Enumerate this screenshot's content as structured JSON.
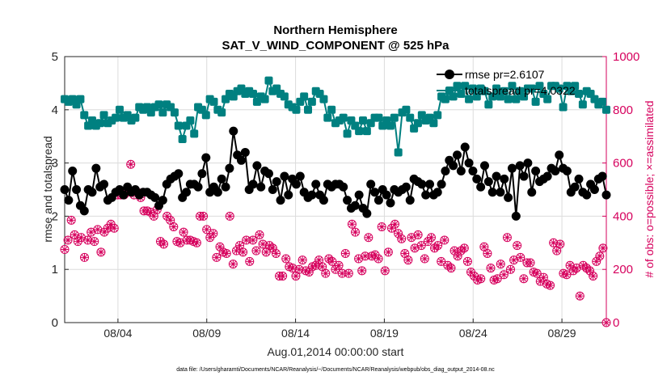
{
  "chart_data": {
    "type": "line",
    "title_line1": "Northern Hemisphere",
    "title_line2": "SAT_V_WIND_COMPONENT @ 525 hPa",
    "xlabel": "Aug.01,2014 00:00:00 start",
    "ylabel_left": "rmse and totalspread",
    "ylabel_right": "# of obs: o=possible; ×=assimilated",
    "footer": "data file: /Users/gharamti/Documents/NCAR/Reanalysis/~/Documents/NCAR/Reanalysis/webpub/obs_diag_output_2014-08.nc",
    "x_day_range": [
      1,
      31.5
    ],
    "ylim_left": [
      0,
      5
    ],
    "ylim_right": [
      0,
      1000
    ],
    "x_ticks": [
      {
        "day": 4,
        "label": "08/04"
      },
      {
        "day": 9,
        "label": "08/09"
      },
      {
        "day": 14,
        "label": "08/14"
      },
      {
        "day": 19,
        "label": "08/19"
      },
      {
        "day": 24,
        "label": "08/24"
      },
      {
        "day": 29,
        "label": "08/29"
      }
    ],
    "y_ticks_left": [
      "0",
      "1",
      "2",
      "3",
      "4",
      "5"
    ],
    "y_ticks_right": [
      "0",
      "200",
      "400",
      "600",
      "800",
      "1000"
    ],
    "colors": {
      "rmse": "#000000",
      "totalspread": "#008080",
      "obs": "#d6005d",
      "axis_right": "#d6005d"
    },
    "legend": [
      {
        "key": "rmse",
        "label": "rmse pr=2.6107"
      },
      {
        "key": "totalspread",
        "label": "totalspread pr=4.0322"
      }
    ],
    "series": [
      {
        "name": "rmse",
        "values": [
          2.5,
          2.3,
          2.85,
          2.5,
          2.2,
          2.1,
          2.5,
          2.45,
          2.9,
          2.55,
          2.6,
          2.3,
          2.35,
          2.45,
          2.5,
          2.4,
          2.55,
          2.45,
          2.5,
          2.4,
          2.45,
          2.45,
          2.4,
          2.35,
          2.2,
          2.3,
          2.6,
          2.7,
          2.75,
          2.8,
          2.35,
          2.45,
          2.6,
          2.6,
          2.55,
          2.8,
          3.1,
          2.45,
          2.55,
          2.45,
          2.7,
          2.55,
          2.9,
          3.6,
          3.15,
          3.05,
          3.2,
          2.5,
          2.6,
          2.95,
          2.55,
          2.85,
          2.8,
          2.5,
          2.65,
          2.3,
          2.75,
          2.4,
          2.7,
          2.6,
          2.75,
          2.45,
          2.35,
          2.4,
          2.6,
          2.4,
          2.3,
          2.6,
          2.55,
          2.6,
          2.6,
          2.55,
          2.3,
          2.15,
          2.2,
          2.4,
          2.15,
          2.05,
          2.6,
          2.45,
          2.3,
          2.5,
          2.4,
          2.25,
          2.5,
          2.45,
          2.5,
          2.55,
          2.3,
          2.7,
          2.65,
          2.6,
          2.4,
          2.6,
          2.4,
          2.45,
          2.6,
          2.85,
          3.05,
          2.95,
          3.15,
          2.85,
          3.3,
          3.0,
          2.85,
          2.7,
          2.55,
          2.95,
          2.65,
          2.45,
          2.75,
          2.45,
          2.7,
          2.35,
          2.9,
          2.0,
          2.95,
          2.75,
          3.0,
          2.45,
          2.85,
          2.65,
          2.7,
          2.75,
          2.9,
          2.85,
          3.15,
          2.9,
          2.85,
          2.45,
          2.55,
          2.7,
          2.45,
          2.4,
          2.6,
          2.5,
          2.7,
          2.75,
          2.4
        ]
      },
      {
        "name": "totalspread",
        "values": [
          4.2,
          4.15,
          4.2,
          4.1,
          4.2,
          3.9,
          3.7,
          3.8,
          3.7,
          3.75,
          3.9,
          3.75,
          3.8,
          3.85,
          4.0,
          3.85,
          3.9,
          3.8,
          3.85,
          4.05,
          4.0,
          4.05,
          3.95,
          4.05,
          4.1,
          3.95,
          4.1,
          4.05,
          3.95,
          3.7,
          3.45,
          3.7,
          3.8,
          3.55,
          4.05,
          4.0,
          3.9,
          4.2,
          4.15,
          4.0,
          3.95,
          4.2,
          4.3,
          4.25,
          4.35,
          4.4,
          4.3,
          4.35,
          4.3,
          4.15,
          4.25,
          4.2,
          4.55,
          4.35,
          4.4,
          4.3,
          4.25,
          4.1,
          4.05,
          4.0,
          4.15,
          4.25,
          4.0,
          4.15,
          4.35,
          4.3,
          4.2,
          3.85,
          4.0,
          3.75,
          3.8,
          3.85,
          3.55,
          3.8,
          3.7,
          3.6,
          3.8,
          3.6,
          3.75,
          3.85,
          3.85,
          3.7,
          3.8,
          3.7,
          3.85,
          3.2,
          3.95,
          4.0,
          3.85,
          3.65,
          3.75,
          3.9,
          3.8,
          3.85,
          3.75,
          3.9,
          4.25,
          4.2,
          4.35,
          4.25,
          4.45,
          4.3,
          4.45,
          4.2,
          4.4,
          4.25,
          4.4,
          4.35,
          4.1,
          4.25,
          4.4,
          4.25,
          4.35,
          4.2,
          4.45,
          4.2,
          4.35,
          4.25,
          4.4,
          4.4,
          4.15,
          4.45,
          4.3,
          4.2,
          4.45,
          4.45,
          4.4,
          4.05,
          4.45,
          4.35,
          4.45,
          4.3,
          4.1,
          4.35,
          4.3,
          4.2,
          4.1,
          4.15,
          4.0
        ]
      },
      {
        "name": "obs_possible",
        "values": [
          275,
          310,
          385,
          330,
          305,
          320,
          245,
          310,
          340,
          305,
          350,
          265,
          340,
          355,
          370,
          355,
          480,
          480,
          480,
          490,
          595,
          480,
          490,
          470,
          420,
          420,
          415,
          400,
          425,
          305,
          295,
          400,
          385,
          360,
          305,
          300,
          340,
          310,
          310,
          305,
          300,
          400,
          400,
          350,
          320,
          335,
          245,
          285,
          265,
          260,
          400,
          220,
          270,
          290,
          265,
          310,
          230,
          310,
          270,
          330,
          295,
          265,
          290,
          280,
          260,
          175,
          175,
          240,
          210,
          205,
          175,
          200,
          235,
          195,
          190,
          210,
          215,
          235,
          210,
          185,
          240,
          230,
          200,
          215,
          185,
          260,
          185,
          370,
          340,
          240,
          195,
          250,
          320,
          250,
          255,
          240,
          360,
          195,
          265,
          355,
          370,
          335,
          315,
          260,
          235,
          320,
          280,
          330,
          290,
          240,
          305,
          320,
          280,
          290,
          230,
          310,
          215,
          205,
          270,
          250,
          270,
          280,
          230,
          190,
          175,
          160,
          165,
          285,
          260,
          205,
          160,
          165,
          220,
          180,
          320,
          200,
          235,
          290,
          245,
          165,
          225,
          225,
          190,
          185,
          155,
          170,
          145,
          140,
          300,
          270,
          295,
          185,
          180,
          215,
          195,
          205,
          100,
          215,
          205,
          195,
          175,
          230,
          250,
          280,
          0
        ]
      }
    ]
  }
}
